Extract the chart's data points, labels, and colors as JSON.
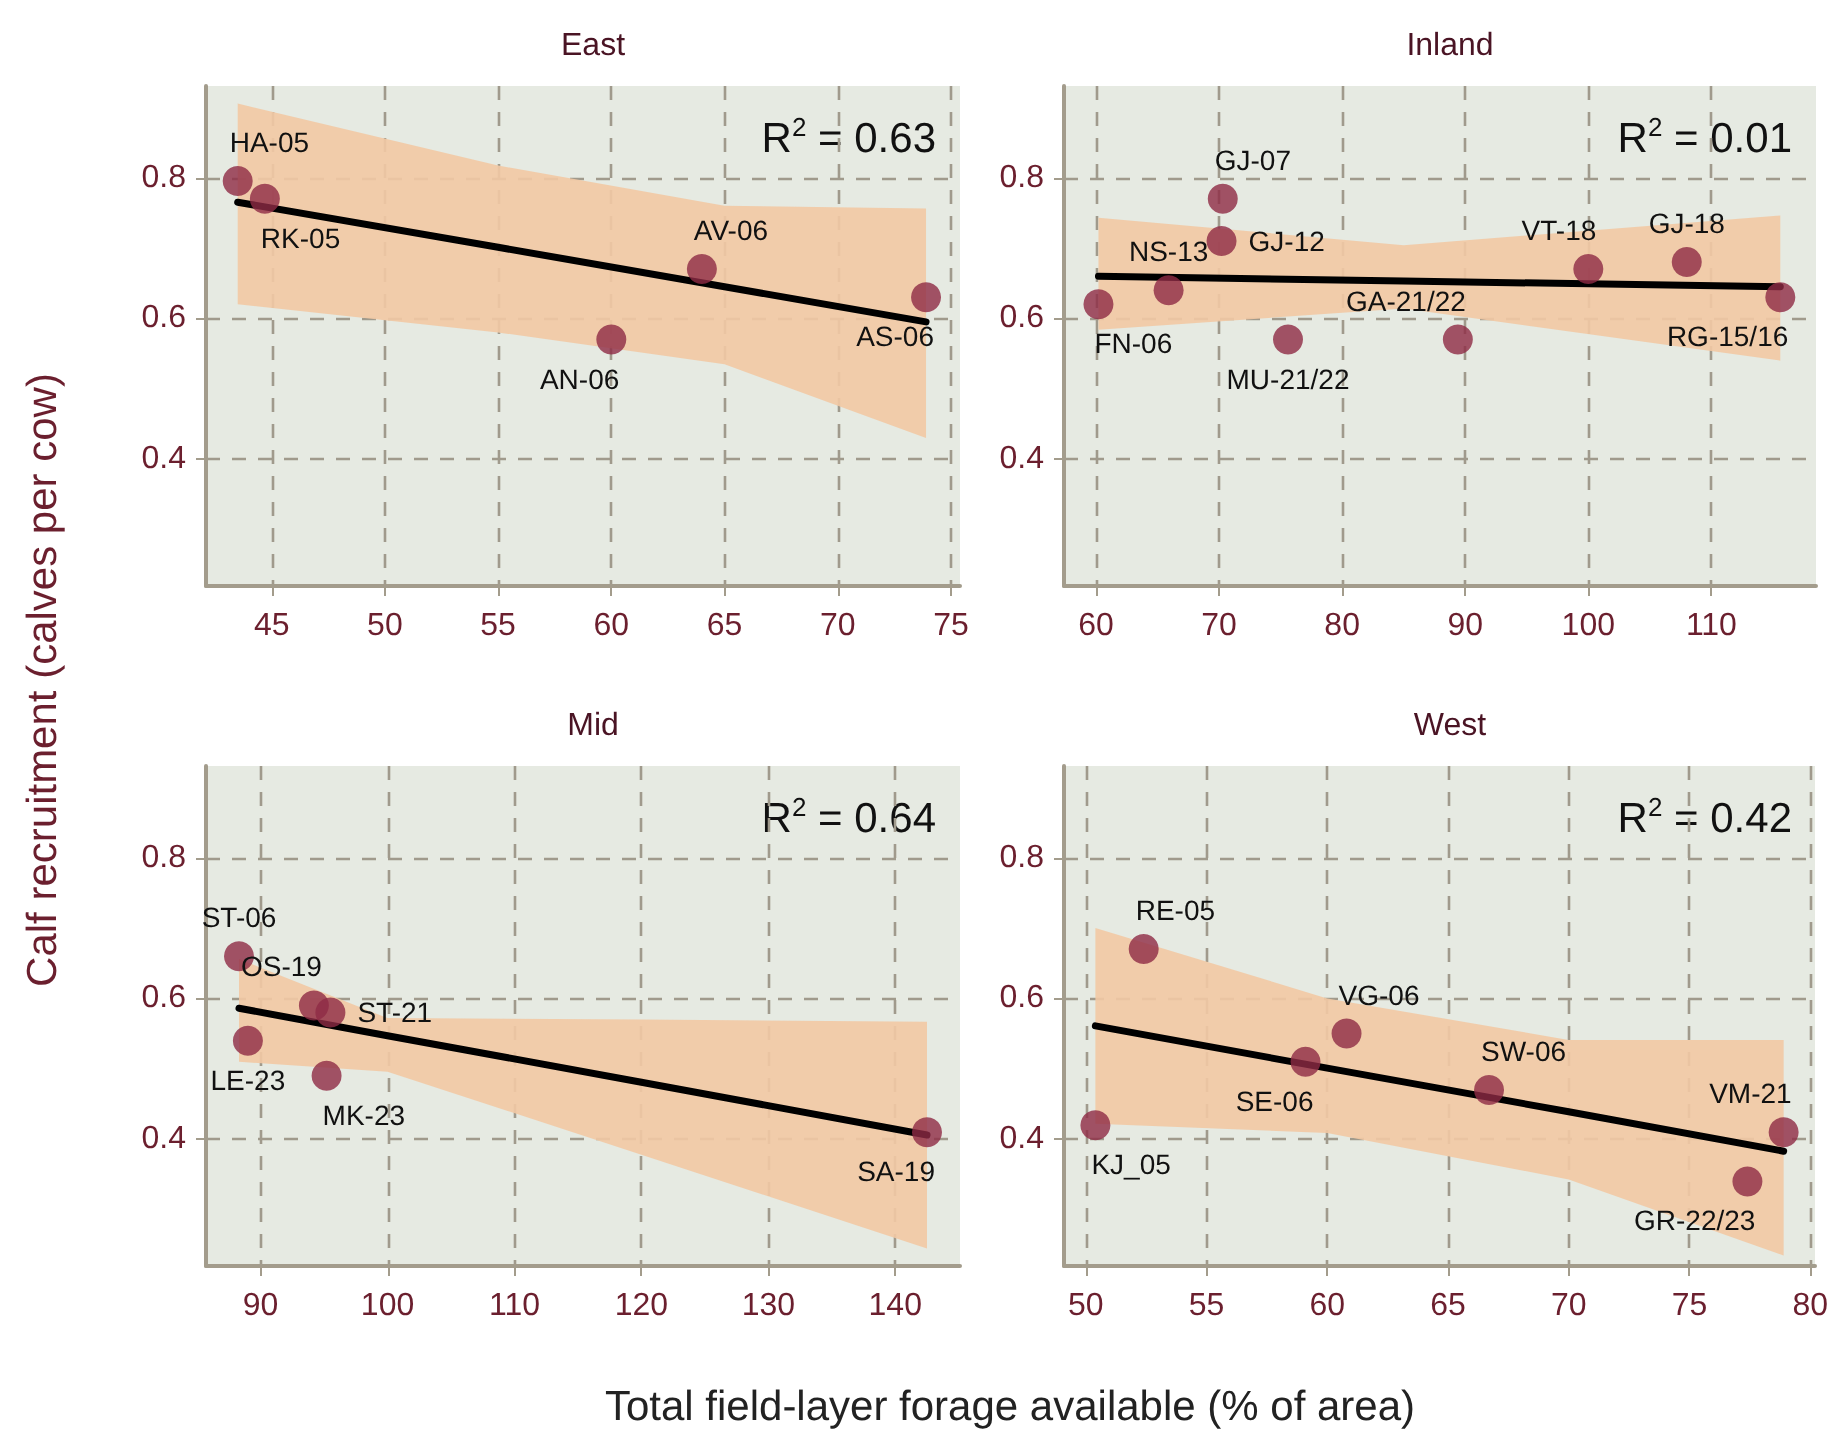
{
  "chart_data": [
    {
      "type": "scatter",
      "title": "East",
      "ylabel": "Calf recruitment (calves per cow)",
      "xlim": [
        42.1,
        75.4
      ],
      "xticks": [
        45,
        50,
        55,
        60,
        65,
        70,
        75
      ],
      "ylim": [
        0.22,
        0.93
      ],
      "yticks": [
        0.4,
        0.6,
        0.8
      ],
      "grid": true,
      "series": [
        {
          "type": "scatter",
          "marker": "circle",
          "color": "#8e2b45",
          "x": [
            43.5,
            44.7,
            60,
            64,
            73.9
          ],
          "values": [
            0.795,
            0.77,
            0.57,
            0.67,
            0.63
          ]
        },
        {
          "type": "line",
          "marker": "none",
          "color": "#000000",
          "line_style": "solid",
          "x": [
            43.5,
            55,
            65,
            73.9
          ],
          "values": [
            0.765,
            0.701,
            0.645,
            0.595
          ],
          "lower": [
            0.62,
            0.58,
            0.535,
            0.43
          ],
          "upper": [
            0.905,
            0.817,
            0.76,
            0.756
          ]
        }
      ],
      "annotations": [
        "R$^{2}$ = 0.63",
        {
          "text": "HA-05",
          "x": 43.5,
          "y": 0.795
        },
        {
          "text": "RK-05",
          "x": 44.7,
          "y": 0.77
        },
        {
          "text": "AN-06",
          "x": 60,
          "y": 0.57
        },
        {
          "text": "AV-06",
          "x": 64,
          "y": 0.67
        },
        {
          "text": "AS-06",
          "x": 73.9,
          "y": 0.63
        }
      ]
    },
    {
      "type": "scatter",
      "title": "Inland",
      "xlim": [
        57.4,
        118.5
      ],
      "xticks": [
        60,
        70,
        80,
        90,
        100,
        110
      ],
      "ylim": [
        0.22,
        0.93
      ],
      "yticks": [
        0.4,
        0.6,
        0.8
      ],
      "grid": true,
      "series": [
        {
          "type": "scatter",
          "marker": "circle",
          "color": "#8e2b45",
          "x": [
            70.3,
            70.2,
            65.9,
            60.2,
            75.6,
            89.4,
            100,
            108,
            115.6
          ],
          "values": [
            0.77,
            0.71,
            0.64,
            0.62,
            0.57,
            0.57,
            0.67,
            0.68,
            0.63
          ]
        },
        {
          "type": "line",
          "marker": "none",
          "color": "#000000",
          "line_style": "solid",
          "x": [
            60.2,
            85,
            115.6
          ],
          "values": [
            0.66,
            0.653,
            0.645
          ],
          "lower": [
            0.584,
            0.614,
            0.54
          ],
          "upper": [
            0.743,
            0.704,
            0.746
          ]
        }
      ],
      "annotations": [
        "R$^{2}$ = 0.01",
        {
          "text": "GJ-07",
          "x": 70.3,
          "y": 0.77
        },
        {
          "text": "GJ-12",
          "x": 70.2,
          "y": 0.71
        },
        {
          "text": "NS-13",
          "x": 65.9,
          "y": 0.64
        },
        {
          "text": "FN-06",
          "x": 60.2,
          "y": 0.62
        },
        {
          "text": "MU-21/22",
          "x": 75.6,
          "y": 0.57
        },
        {
          "text": "GA-21/22",
          "x": 89.4,
          "y": 0.57
        },
        {
          "text": "VT-18",
          "x": 100,
          "y": 0.67
        },
        {
          "text": "GJ-18",
          "x": 108,
          "y": 0.68
        },
        {
          "text": "RG-15/16",
          "x": 115.6,
          "y": 0.63
        }
      ]
    },
    {
      "type": "scatter",
      "title": "Mid",
      "xlabel": "Total field-layer forage available (% of area)",
      "xlim": [
        85.7,
        145.1
      ],
      "xticks": [
        90,
        100,
        110,
        120,
        130,
        140
      ],
      "ylim": [
        0.22,
        0.93
      ],
      "yticks": [
        0.4,
        0.6,
        0.8
      ],
      "grid": true,
      "series": [
        {
          "type": "scatter",
          "marker": "circle",
          "color": "#8e2b45",
          "x": [
            88.3,
            94.2,
            95.5,
            89,
            95.2,
            142.5
          ],
          "values": [
            0.66,
            0.59,
            0.58,
            0.54,
            0.49,
            0.41
          ]
        },
        {
          "type": "line",
          "marker": "none",
          "color": "#000000",
          "line_style": "solid",
          "x": [
            88.3,
            100,
            120,
            142.5
          ],
          "values": [
            0.586,
            0.547,
            0.481,
            0.406
          ],
          "lower": [
            0.51,
            0.496,
            0.378,
            0.245
          ],
          "upper": [
            0.656,
            0.572,
            0.57,
            0.567
          ]
        }
      ],
      "annotations": [
        "R$^{2}$ = 0.64",
        {
          "text": "ST-06",
          "x": 88.3,
          "y": 0.66
        },
        {
          "text": "OS-19",
          "x": 94.2,
          "y": 0.59
        },
        {
          "text": "ST-21",
          "x": 95.5,
          "y": 0.58
        },
        {
          "text": "LE-23",
          "x": 89,
          "y": 0.54
        },
        {
          "text": "MK-23",
          "x": 95.2,
          "y": 0.49
        },
        {
          "text": "SA-19",
          "x": 142.5,
          "y": 0.41
        }
      ]
    },
    {
      "type": "scatter",
      "title": "West",
      "xlim": [
        49.1,
        80.2
      ],
      "xticks": [
        50,
        55,
        60,
        65,
        70,
        75,
        80
      ],
      "ylim": [
        0.22,
        0.93
      ],
      "yticks": [
        0.4,
        0.6,
        0.8
      ],
      "grid": true,
      "series": [
        {
          "type": "scatter",
          "marker": "circle",
          "color": "#8e2b45",
          "x": [
            52.4,
            50.4,
            59.1,
            60.8,
            66.7,
            78.9,
            77.4
          ],
          "values": [
            0.67,
            0.42,
            0.51,
            0.55,
            0.47,
            0.41,
            0.34
          ]
        },
        {
          "type": "line",
          "marker": "none",
          "color": "#000000",
          "line_style": "solid",
          "x": [
            50.4,
            60,
            70,
            78.9
          ],
          "values": [
            0.561,
            0.501,
            0.439,
            0.383
          ],
          "lower": [
            0.422,
            0.409,
            0.343,
            0.235
          ],
          "upper": [
            0.7,
            0.6,
            0.541,
            0.541
          ]
        }
      ],
      "annotations": [
        "R$^{2}$ = 0.42",
        {
          "text": "RE-05",
          "x": 52.4,
          "y": 0.67
        },
        {
          "text": "KJ_05",
          "x": 50.4,
          "y": 0.42
        },
        {
          "text": "SE-06",
          "x": 59.1,
          "y": 0.51
        },
        {
          "text": "VG-06",
          "x": 60.8,
          "y": 0.55
        },
        {
          "text": "SW-06",
          "x": 66.7,
          "y": 0.47
        },
        {
          "text": "VM-21",
          "x": 78.9,
          "y": 0.41
        },
        {
          "text": "GR-22/23",
          "x": 77.4,
          "y": 0.34
        }
      ]
    }
  ]
}
